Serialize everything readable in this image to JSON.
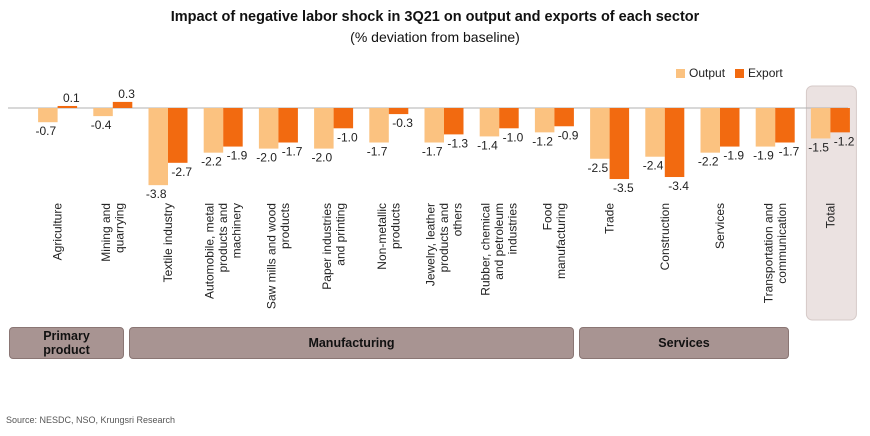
{
  "title": "Impact of negative labor shock in 3Q21 on output and exports of each sector",
  "subtitle": "(% deviation from baseline)",
  "source": "Source: NESDC, NSO, Krungsri Research",
  "colors": {
    "output": "#fbc280",
    "export": "#f26a10",
    "total_highlight": "#ebe2e1",
    "group_box": "#a89492"
  },
  "groups": [
    {
      "label_lines": [
        "Primary",
        "product"
      ]
    },
    {
      "label_lines": [
        "Manufacturing"
      ]
    },
    {
      "label_lines": [
        "Services"
      ]
    }
  ],
  "chart_data": {
    "type": "bar",
    "title": "Impact of negative labor shock in 3Q21 on output and exports of each sector",
    "subtitle": "(% deviation from baseline)",
    "legend_position": "top-right",
    "grid": false,
    "categories": [
      [
        "Agriculture"
      ],
      [
        "Mining and",
        "quarrying"
      ],
      [
        "Textile industry"
      ],
      [
        "Automobile, metal",
        "products and",
        "machinery"
      ],
      [
        "Saw mills and wood",
        "products"
      ],
      [
        "Paper industries",
        "and printing"
      ],
      [
        "Non-metallic",
        "products"
      ],
      [
        "Jewelry, leather",
        "products and",
        "others"
      ],
      [
        "Rubber, chemical",
        "and petroleum",
        "industries"
      ],
      [
        "Food",
        "manufacturing"
      ],
      [
        "Trade"
      ],
      [
        "Construction"
      ],
      [
        "Services"
      ],
      [
        "Transportation and",
        "communication"
      ],
      [
        "Total"
      ]
    ],
    "series": [
      {
        "name": "Output",
        "values": [
          -0.7,
          -0.4,
          -3.8,
          -2.2,
          -2.0,
          -2.0,
          -1.7,
          -1.7,
          -1.4,
          -1.2,
          -2.5,
          -2.4,
          -2.2,
          -1.9,
          -1.5
        ]
      },
      {
        "name": "Export",
        "values": [
          0.1,
          0.3,
          -2.7,
          -1.9,
          -1.7,
          -1.0,
          -0.3,
          -1.3,
          -1.0,
          -0.9,
          -3.5,
          -3.4,
          -1.9,
          -1.7,
          -1.2
        ]
      }
    ],
    "value_labels": {
      "Output": [
        "-0.7",
        "-0.4",
        "-3.8",
        "-2.2",
        "-2.0",
        "-2.0",
        "-1.7",
        "-1.7",
        "-1.4",
        "-1.2",
        "-2.5",
        "-2.4",
        "-2.2",
        "-1.9",
        "-1.5"
      ],
      "Export": [
        "0.1",
        "0.3",
        "-2.7",
        "-1.9",
        "-1.7",
        "-1.0",
        "-0.3",
        "-1.3",
        "-1.0",
        "-0.9",
        "-3.5",
        "-3.4",
        "-1.9",
        "-1.7",
        "-1.2"
      ]
    }
  }
}
